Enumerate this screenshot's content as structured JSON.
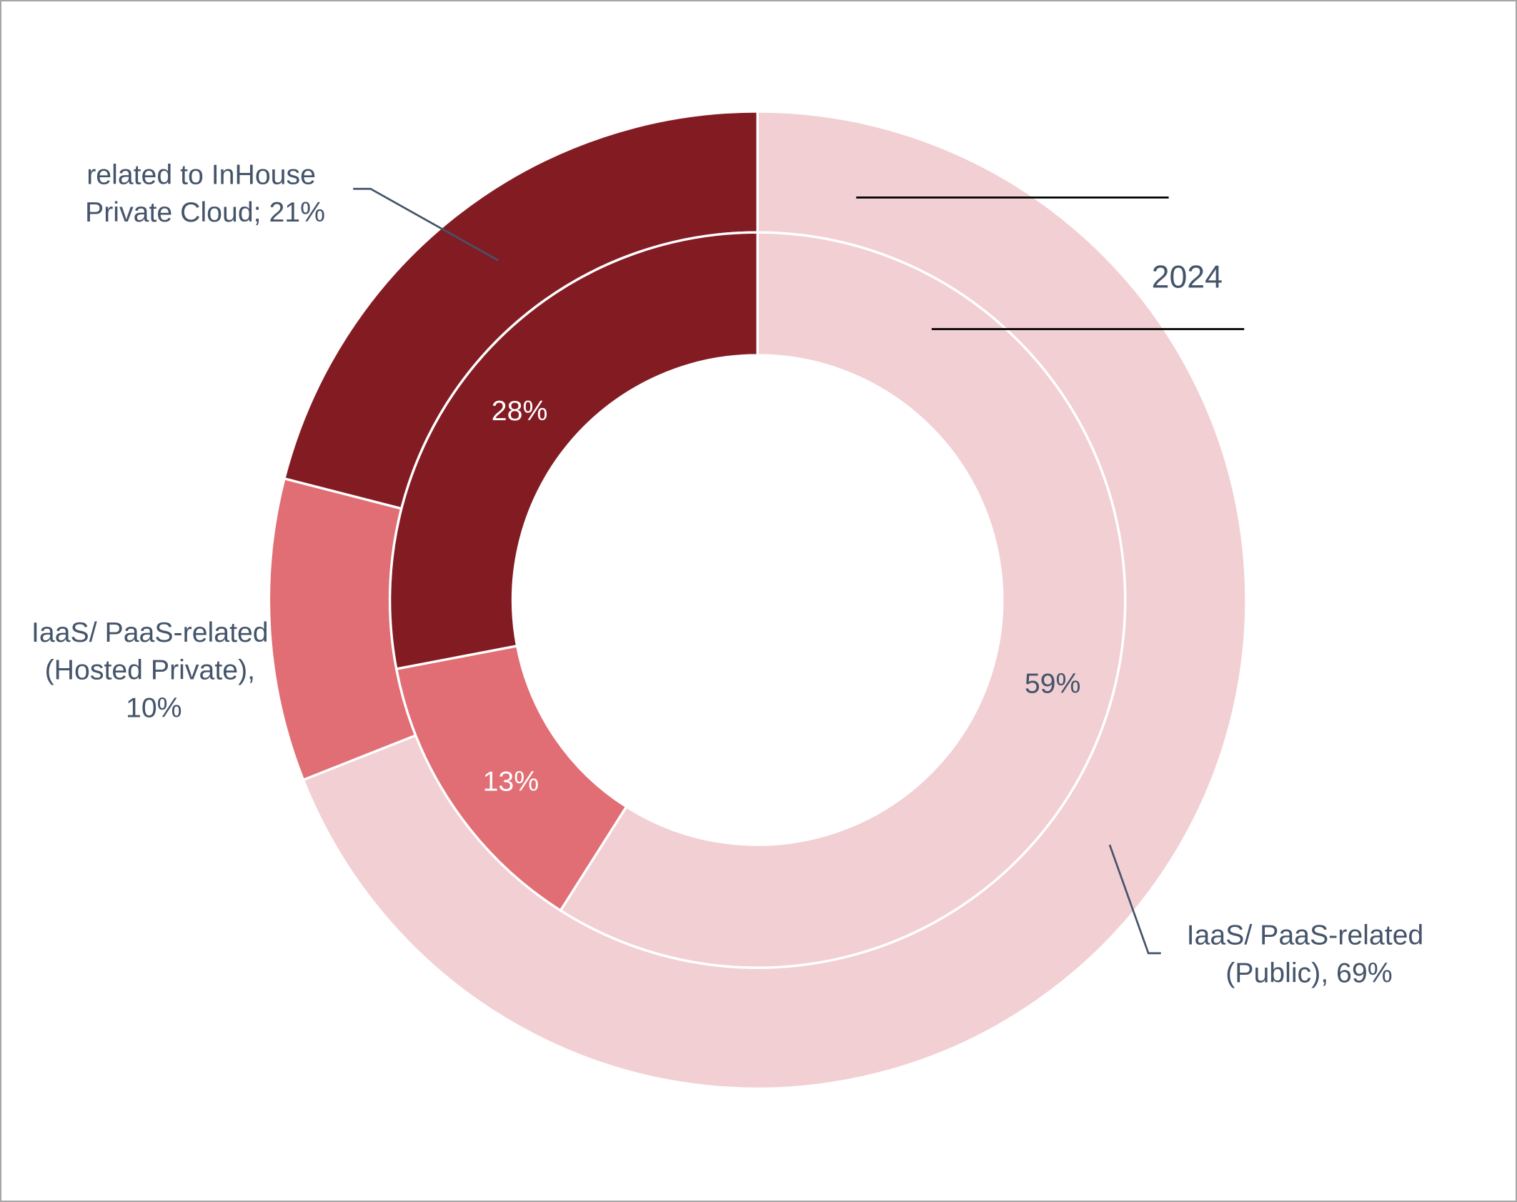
{
  "chart_data": {
    "type": "pie",
    "subtype": "doughnut",
    "categories": [
      "IaaS/ PaaS-related (Public)",
      "IaaS/ PaaS-related (Hosted Private)",
      "related to InHouse Private Cloud"
    ],
    "colors": [
      "#F2CFD2",
      "#E06E74",
      "#831B23"
    ],
    "series": [
      {
        "name": "2024",
        "ring": "outer",
        "values": [
          69,
          10,
          21
        ],
        "labels": [
          "IaaS/ PaaS-related (Public), 69%",
          "IaaS/ PaaS-related (Hosted Private), 10%",
          "related to InHouse Private Cloud; 21%"
        ]
      },
      {
        "name": "",
        "ring": "inner",
        "values": [
          59,
          13,
          28
        ],
        "labels": [
          "59%",
          "13%",
          "28%"
        ]
      }
    ],
    "series_label": "2024",
    "outer_label_lines": {
      "public": [
        "IaaS/ PaaS-related",
        "(Public), 69%"
      ],
      "hosted": [
        "IaaS/ PaaS-related",
        "(Hosted Private),",
        "10%"
      ],
      "inhouse": [
        "related to InHouse",
        "Private Cloud; 21%"
      ]
    },
    "text_color": "#44546A"
  }
}
